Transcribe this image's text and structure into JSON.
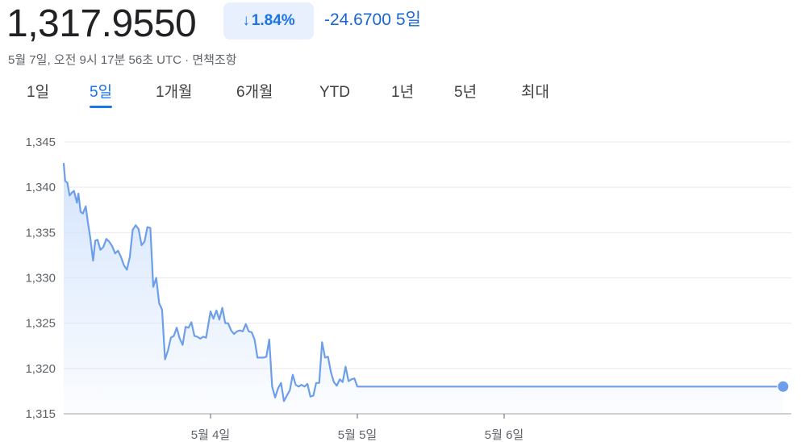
{
  "header": {
    "price": "1,317.9550",
    "change_arrow": "↓",
    "change_pct": "1.84%",
    "change_abs": "-24.6700",
    "change_period": "5일",
    "timestamp": "5월 7일, 오전 9시 17분 56초 UTC · 면책조항"
  },
  "tabs": [
    {
      "label": "1일",
      "active": false
    },
    {
      "label": "5일",
      "active": true
    },
    {
      "label": "1개월",
      "active": false
    },
    {
      "label": "6개월",
      "active": false
    },
    {
      "label": "YTD",
      "active": false
    },
    {
      "label": "1년",
      "active": false
    },
    {
      "label": "5년",
      "active": false
    },
    {
      "label": "최대",
      "active": false
    }
  ],
  "colors": {
    "line": "#6d9eeb",
    "fill": "#d2e3fc",
    "accent": "#1a73e8",
    "grid": "#e8eaed"
  },
  "chart_data": {
    "type": "area",
    "ylim": [
      1315,
      1345
    ],
    "yticks": [
      1315,
      1320,
      1325,
      1330,
      1335,
      1340,
      1345
    ],
    "ytick_labels": [
      "1,315",
      "1,320",
      "1,325",
      "1,330",
      "1,335",
      "1,340",
      "1,345"
    ],
    "xlim": [
      0,
      5
    ],
    "xticks": [
      1,
      2,
      3
    ],
    "xtick_labels": [
      "5월 4일",
      "5월 5일",
      "5월 6일"
    ],
    "grid": true,
    "last_point_marker": true,
    "series": [
      {
        "x": [
          0.0,
          0.01,
          0.025,
          0.04,
          0.055,
          0.07,
          0.09,
          0.1,
          0.115,
          0.13,
          0.15,
          0.165,
          0.18,
          0.2,
          0.215,
          0.23,
          0.25,
          0.27,
          0.29,
          0.31,
          0.33,
          0.35,
          0.37,
          0.39,
          0.41,
          0.43,
          0.45,
          0.47,
          0.49,
          0.51,
          0.53,
          0.55,
          0.57,
          0.59,
          0.61,
          0.63,
          0.65,
          0.67,
          0.69,
          0.71,
          0.73,
          0.75,
          0.77,
          0.79,
          0.81,
          0.83,
          0.85,
          0.87,
          0.89,
          0.91,
          0.93,
          0.95,
          0.97,
          1.0,
          1.02,
          1.04,
          1.06,
          1.08,
          1.1,
          1.12,
          1.14,
          1.16,
          1.18,
          1.2,
          1.22,
          1.24,
          1.26,
          1.28,
          1.3,
          1.32,
          1.34,
          1.36,
          1.38,
          1.4,
          1.42,
          1.44,
          1.46,
          1.48,
          1.5,
          1.52,
          1.54,
          1.56,
          1.58,
          1.6,
          1.62,
          1.64,
          1.66,
          1.68,
          1.7,
          1.72,
          1.74,
          1.76,
          1.78,
          1.8,
          1.82,
          1.84,
          1.86,
          1.88,
          1.9,
          1.92,
          1.94,
          1.96,
          1.98,
          2.0,
          2.02,
          2.04,
          2.06,
          2.08,
          2.1,
          2.12,
          2.14,
          2.16,
          2.18,
          2.2,
          2.22,
          2.24,
          2.26,
          2.28,
          2.3,
          2.32,
          2.34,
          2.36,
          2.38,
          2.4,
          2.42,
          2.44,
          2.46,
          2.48,
          2.5,
          2.52,
          2.54,
          2.56,
          2.58,
          2.6,
          2.62,
          2.64,
          2.66,
          2.68,
          2.7,
          2.72,
          2.74,
          2.76,
          2.78,
          2.8,
          2.82,
          2.84,
          2.86,
          2.88,
          2.9,
          2.92,
          2.94,
          2.96,
          2.98,
          3.0,
          3.5,
          4.0,
          4.5,
          4.9
        ],
        "y": [
          1342.6,
          1340.7,
          1340.5,
          1339.1,
          1339.4,
          1339.6,
          1338.3,
          1339.3,
          1337.3,
          1337.1,
          1337.9,
          1336.1,
          1334.5,
          1331.9,
          1334.1,
          1334.2,
          1333.1,
          1333.4,
          1334.3,
          1334.0,
          1333.5,
          1332.7,
          1333.0,
          1332.3,
          1331.4,
          1330.9,
          1332.3,
          1335.3,
          1335.8,
          1335.4,
          1333.6,
          1334.0,
          1335.6,
          1335.5,
          1329.0,
          1330.0,
          1327.2,
          1326.5,
          1321.0,
          1322.0,
          1323.4,
          1323.6,
          1324.5,
          1323.3,
          1322.6,
          1324.6,
          1324.5,
          1325.1,
          1323.6,
          1323.5,
          1323.3,
          1323.5,
          1323.4,
          1326.3,
          1325.5,
          1326.4,
          1325.4,
          1326.7,
          1325.0,
          1325.0,
          1324.2,
          1323.8,
          1324.1,
          1324.2,
          1324.1,
          1324.9,
          1324.1,
          1324.0,
          1323.2,
          1321.2,
          1321.2,
          1321.2,
          1321.3,
          1323.2,
          1318.0,
          1316.8,
          1317.8,
          1318.4,
          1316.4,
          1317.0,
          1317.6,
          1319.3,
          1318.2,
          1318.0,
          1318.2,
          1318.0,
          1318.3,
          1316.9,
          1317.0,
          1318.4,
          1318.4,
          1322.9,
          1321.2,
          1321.3,
          1319.6,
          1318.5,
          1318.1,
          1318.8,
          1318.5,
          1320.2,
          1318.6,
          1318.8,
          1318.9,
          1318.0,
          1318.0,
          1318.0,
          1318.0,
          1318.0,
          1318.0,
          1318.0,
          1318.0,
          1318.0,
          1318.0,
          1318.0,
          1318.0,
          1318.0,
          1318.0,
          1318.0,
          1318.0,
          1318.0,
          1318.0,
          1318.0,
          1318.0,
          1318.0,
          1318.0,
          1318.0,
          1318.0,
          1318.0,
          1318.0,
          1318.0,
          1318.0,
          1318.0,
          1318.0,
          1318.0,
          1318.0,
          1318.0,
          1318.0,
          1318.0,
          1318.0,
          1318.0,
          1318.0,
          1318.0,
          1318.0,
          1318.0,
          1318.0,
          1318.0,
          1318.0,
          1318.0,
          1318.0,
          1318.0,
          1318.0,
          1318.0,
          1318.0,
          1318.0,
          1318.0,
          1318.0,
          1318.0,
          1318.0
        ]
      }
    ]
  }
}
